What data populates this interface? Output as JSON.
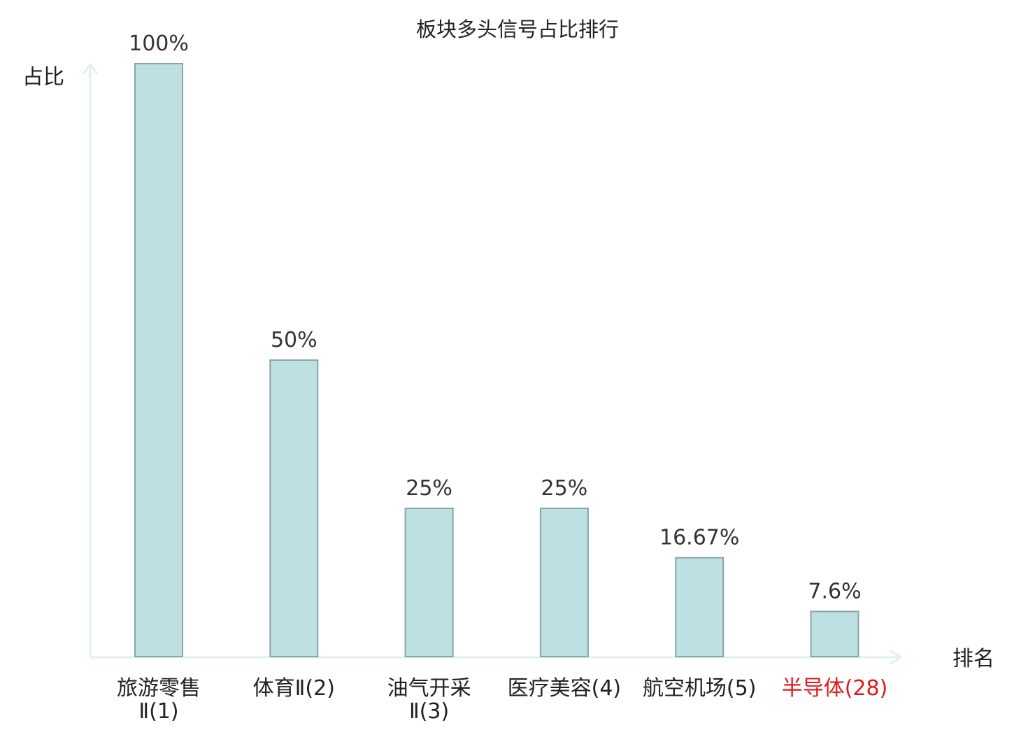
{
  "chart_data": {
    "type": "bar",
    "title": "板块多头信号占比排行",
    "ylabel": "占比",
    "xlabel": "排名",
    "ylim": [
      0,
      100
    ],
    "grid": false,
    "categories": [
      {
        "lines": [
          "旅游零售",
          "Ⅱ(1)"
        ],
        "highlight": false
      },
      {
        "lines": [
          "体育Ⅱ(2)"
        ],
        "highlight": false
      },
      {
        "lines": [
          "油气开采",
          "Ⅱ(3)"
        ],
        "highlight": false
      },
      {
        "lines": [
          "医疗美容(4)"
        ],
        "highlight": false
      },
      {
        "lines": [
          "航空机场(5)"
        ],
        "highlight": false
      },
      {
        "lines": [
          "半导体(28)"
        ],
        "highlight": true
      }
    ],
    "values": [
      100,
      50,
      25,
      25,
      16.67,
      7.6
    ],
    "data_labels": [
      "100%",
      "50%",
      "25%",
      "25%",
      "16.67%",
      "7.6%"
    ],
    "colors": {
      "bar_fill": "#bde0e3",
      "bar_stroke": "#8aa5a8",
      "axis": "#dff0ee",
      "text": "#222222",
      "label_text": "#333333",
      "highlight": "#e0191e"
    }
  }
}
